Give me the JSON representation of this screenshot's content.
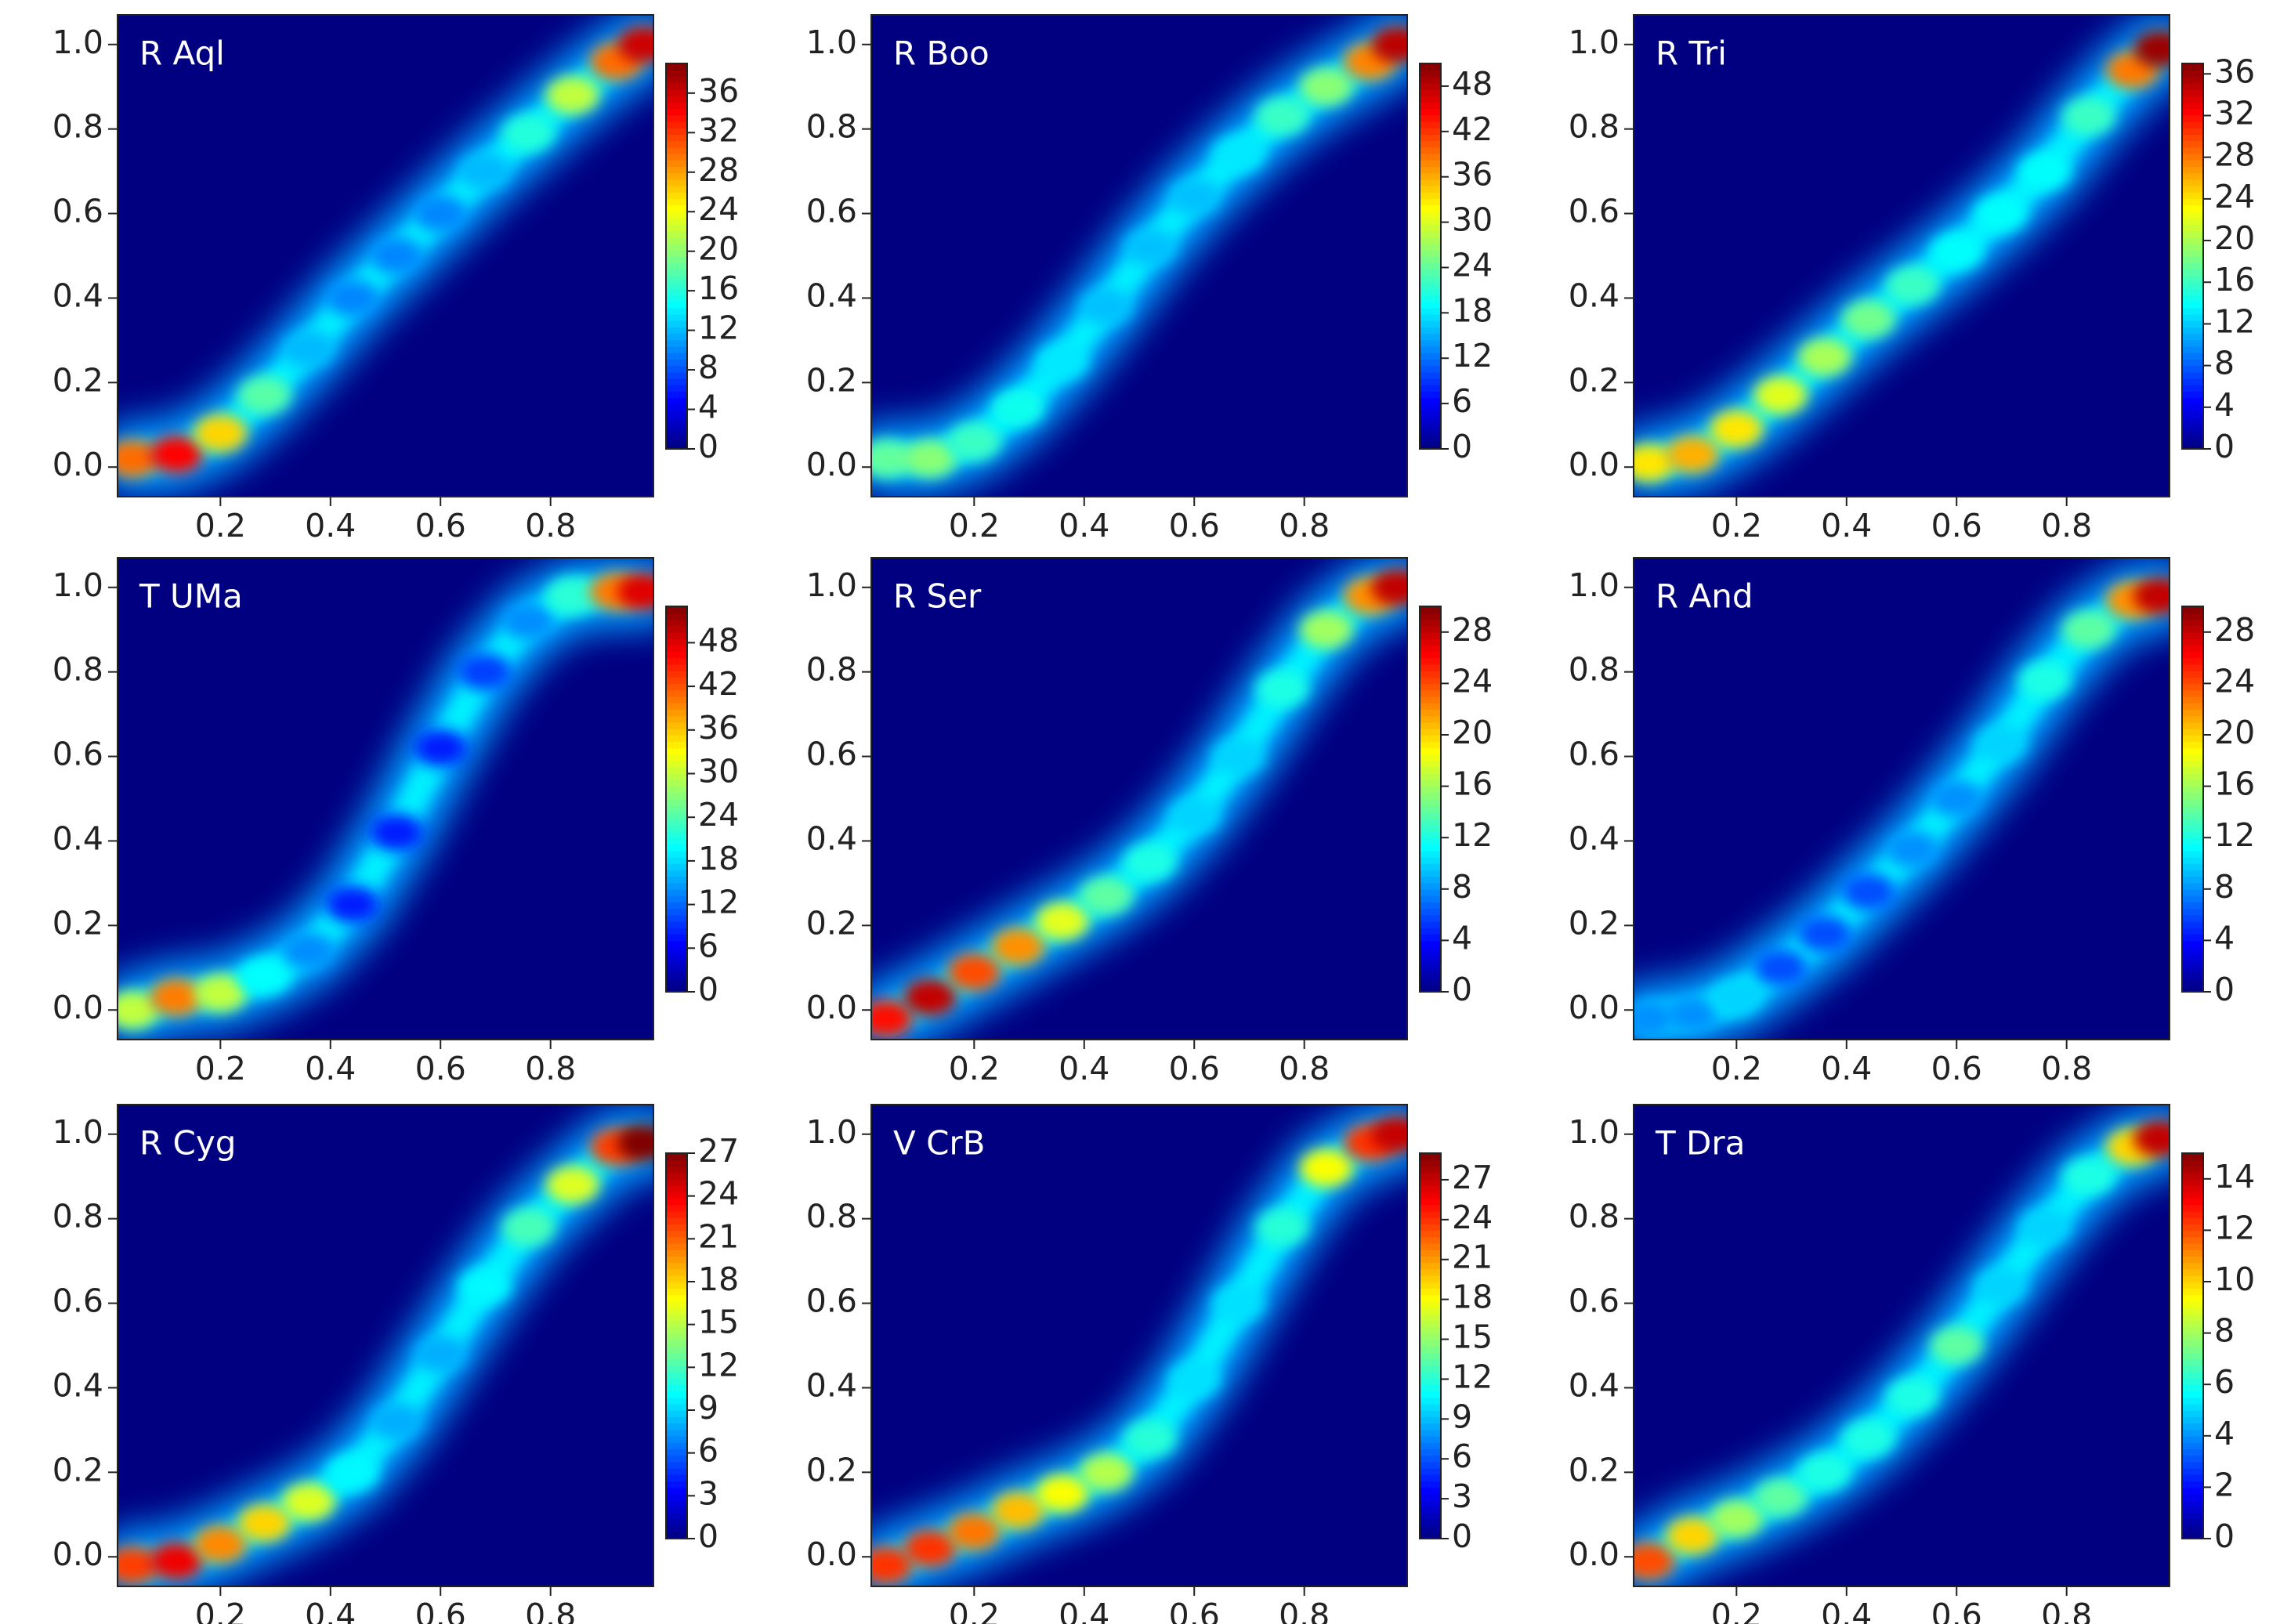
{
  "chart_data": [
    {
      "type": "contour",
      "title": "R Aql",
      "colormap": "jet",
      "xlim": [
        0.013,
        0.987
      ],
      "ylim": [
        -0.07,
        1.07
      ],
      "xticks": [
        0.2,
        0.4,
        0.6,
        0.8
      ],
      "yticks": [
        {
          "value": 0,
          "label": "0.0"
        },
        0.2,
        0.4,
        0.6,
        0.8,
        {
          "value": 1,
          "label": "1.0"
        }
      ],
      "clim": [
        0,
        39
      ],
      "cticks": [
        0,
        4,
        8,
        12,
        16,
        20,
        24,
        28,
        32,
        36
      ],
      "x": [
        0.04,
        0.12,
        0.2,
        0.28,
        0.36,
        0.44,
        0.52,
        0.6,
        0.68,
        0.76,
        0.84,
        0.92,
        0.97
      ],
      "y": [
        0.02,
        0.03,
        0.08,
        0.17,
        0.28,
        0.4,
        0.5,
        0.6,
        0.7,
        0.79,
        0.88,
        0.96,
        1.0
      ],
      "values": [
        30,
        34,
        26,
        18,
        12,
        10,
        10,
        10,
        12,
        16,
        22,
        30,
        36
      ]
    },
    {
      "type": "contour",
      "title": "R Boo",
      "colormap": "jet",
      "xlim": [
        0.013,
        0.987
      ],
      "ylim": [
        -0.07,
        1.07
      ],
      "xticks": [
        0.2,
        0.4,
        0.6,
        0.8
      ],
      "yticks": [
        {
          "value": 0,
          "label": "0.0"
        },
        0.2,
        0.4,
        0.6,
        0.8,
        {
          "value": 1,
          "label": "1.0"
        }
      ],
      "clim": [
        0,
        51
      ],
      "cticks": [
        0,
        6,
        12,
        18,
        24,
        30,
        36,
        42,
        48
      ],
      "x": [
        0.04,
        0.12,
        0.2,
        0.28,
        0.36,
        0.44,
        0.52,
        0.6,
        0.68,
        0.76,
        0.84,
        0.92,
        0.97
      ],
      "y": [
        0.02,
        0.02,
        0.06,
        0.14,
        0.25,
        0.38,
        0.52,
        0.64,
        0.74,
        0.83,
        0.9,
        0.96,
        1.0
      ],
      "values": [
        24,
        26,
        22,
        20,
        18,
        16,
        16,
        16,
        18,
        22,
        26,
        38,
        48
      ]
    },
    {
      "type": "contour",
      "title": "R Tri",
      "colormap": "jet",
      "xlim": [
        0.013,
        0.987
      ],
      "ylim": [
        -0.07,
        1.07
      ],
      "xticks": [
        0.2,
        0.4,
        0.6,
        0.8
      ],
      "yticks": [
        {
          "value": 0,
          "label": "0.0"
        },
        0.2,
        0.4,
        0.6,
        0.8,
        {
          "value": 1,
          "label": "1.0"
        }
      ],
      "clim": [
        0,
        37
      ],
      "cticks": [
        0,
        4,
        8,
        12,
        16,
        20,
        24,
        28,
        32,
        36
      ],
      "x": [
        0.04,
        0.12,
        0.2,
        0.28,
        0.36,
        0.44,
        0.52,
        0.6,
        0.68,
        0.76,
        0.84,
        0.92,
        0.97
      ],
      "y": [
        0.01,
        0.03,
        0.09,
        0.17,
        0.26,
        0.35,
        0.43,
        0.51,
        0.6,
        0.7,
        0.83,
        0.94,
        0.99
      ],
      "values": [
        24,
        26,
        24,
        22,
        20,
        18,
        16,
        14,
        14,
        14,
        16,
        28,
        36
      ]
    },
    {
      "type": "contour",
      "title": "T UMa",
      "colormap": "jet",
      "xlim": [
        0.013,
        0.987
      ],
      "ylim": [
        -0.07,
        1.07
      ],
      "xticks": [
        0.2,
        0.4,
        0.6,
        0.8
      ],
      "yticks": [
        {
          "value": 0,
          "label": "0.0"
        },
        0.2,
        0.4,
        0.6,
        0.8,
        {
          "value": 1,
          "label": "1.0"
        }
      ],
      "clim": [
        0,
        53
      ],
      "cticks": [
        0,
        6,
        12,
        18,
        24,
        30,
        36,
        42,
        48
      ],
      "x": [
        0.04,
        0.12,
        0.2,
        0.28,
        0.36,
        0.44,
        0.52,
        0.6,
        0.68,
        0.76,
        0.84,
        0.92,
        0.97
      ],
      "y": [
        0.0,
        0.03,
        0.04,
        0.08,
        0.14,
        0.25,
        0.42,
        0.62,
        0.8,
        0.92,
        0.98,
        0.99,
        0.99
      ],
      "values": [
        30,
        40,
        30,
        20,
        14,
        8,
        8,
        8,
        10,
        14,
        22,
        40,
        48
      ]
    },
    {
      "type": "contour",
      "title": "R Ser",
      "colormap": "jet",
      "xlim": [
        0.013,
        0.987
      ],
      "ylim": [
        -0.07,
        1.07
      ],
      "xticks": [
        0.2,
        0.4,
        0.6,
        0.8
      ],
      "yticks": [
        {
          "value": 0,
          "label": "0.0"
        },
        0.2,
        0.4,
        0.6,
        0.8,
        {
          "value": 1,
          "label": "1.0"
        }
      ],
      "clim": [
        0,
        30
      ],
      "cticks": [
        0,
        4,
        8,
        12,
        16,
        20,
        24,
        28
      ],
      "x": [
        0.04,
        0.12,
        0.2,
        0.28,
        0.36,
        0.44,
        0.52,
        0.6,
        0.68,
        0.76,
        0.84,
        0.92,
        0.97
      ],
      "y": [
        -0.02,
        0.03,
        0.09,
        0.15,
        0.21,
        0.27,
        0.35,
        0.46,
        0.6,
        0.76,
        0.9,
        0.98,
        1.0
      ],
      "values": [
        26,
        28,
        24,
        22,
        18,
        14,
        12,
        10,
        10,
        12,
        16,
        22,
        28
      ]
    },
    {
      "type": "contour",
      "title": "R And",
      "colormap": "jet",
      "xlim": [
        0.013,
        0.987
      ],
      "ylim": [
        -0.07,
        1.07
      ],
      "xticks": [
        0.2,
        0.4,
        0.6,
        0.8
      ],
      "yticks": [
        {
          "value": 0,
          "label": "0.0"
        },
        0.2,
        0.4,
        0.6,
        0.8,
        {
          "value": 1,
          "label": "1.0"
        }
      ],
      "clim": [
        0,
        30
      ],
      "cticks": [
        0,
        4,
        8,
        12,
        16,
        20,
        24,
        28
      ],
      "x": [
        0.04,
        0.12,
        0.2,
        0.28,
        0.36,
        0.44,
        0.52,
        0.6,
        0.68,
        0.76,
        0.84,
        0.92,
        0.97
      ],
      "y": [
        -0.02,
        -0.01,
        0.03,
        0.1,
        0.18,
        0.28,
        0.38,
        0.5,
        0.63,
        0.78,
        0.9,
        0.97,
        0.98
      ],
      "values": [
        8,
        8,
        10,
        6,
        6,
        6,
        8,
        8,
        10,
        12,
        14,
        22,
        28
      ]
    },
    {
      "type": "contour",
      "title": "R Cyg",
      "colormap": "jet",
      "xlim": [
        0.013,
        0.987
      ],
      "ylim": [
        -0.07,
        1.07
      ],
      "xticks": [
        0.2,
        0.4,
        0.6,
        0.8
      ],
      "yticks": [
        {
          "value": 0,
          "label": "0.0"
        },
        0.2,
        0.4,
        0.6,
        0.8,
        {
          "value": 1,
          "label": "1.0"
        }
      ],
      "clim": [
        0,
        27
      ],
      "cticks": [
        0,
        3,
        6,
        9,
        12,
        15,
        18,
        21,
        24,
        27
      ],
      "x": [
        0.04,
        0.12,
        0.2,
        0.28,
        0.36,
        0.44,
        0.52,
        0.6,
        0.68,
        0.76,
        0.84,
        0.92,
        0.97
      ],
      "y": [
        -0.02,
        -0.01,
        0.03,
        0.08,
        0.13,
        0.2,
        0.32,
        0.48,
        0.64,
        0.78,
        0.88,
        0.97,
        0.98
      ],
      "values": [
        22,
        24,
        20,
        18,
        16,
        10,
        8,
        8,
        10,
        12,
        16,
        22,
        27
      ]
    },
    {
      "type": "contour",
      "title": "V CrB",
      "colormap": "jet",
      "xlim": [
        0.013,
        0.987
      ],
      "ylim": [
        -0.07,
        1.07
      ],
      "xticks": [
        0.2,
        0.4,
        0.6,
        0.8
      ],
      "yticks": [
        {
          "value": 0,
          "label": "0.0"
        },
        0.2,
        0.4,
        0.6,
        0.8,
        {
          "value": 1,
          "label": "1.0"
        }
      ],
      "clim": [
        0,
        29
      ],
      "cticks": [
        0,
        3,
        6,
        9,
        12,
        15,
        18,
        21,
        24,
        27
      ],
      "x": [
        0.04,
        0.12,
        0.2,
        0.28,
        0.36,
        0.44,
        0.52,
        0.6,
        0.68,
        0.76,
        0.84,
        0.92,
        0.97
      ],
      "y": [
        -0.02,
        0.02,
        0.06,
        0.11,
        0.15,
        0.2,
        0.28,
        0.42,
        0.6,
        0.78,
        0.92,
        0.98,
        1.0
      ],
      "values": [
        24,
        24,
        22,
        20,
        18,
        16,
        12,
        10,
        10,
        12,
        18,
        24,
        27
      ]
    },
    {
      "type": "contour",
      "title": "T Dra",
      "colormap": "jet",
      "xlim": [
        0.013,
        0.987
      ],
      "ylim": [
        -0.07,
        1.07
      ],
      "xticks": [
        0.2,
        0.4,
        0.6,
        0.8
      ],
      "yticks": [
        {
          "value": 0,
          "label": "0.0"
        },
        0.2,
        0.4,
        0.6,
        0.8,
        {
          "value": 1,
          "label": "1.0"
        }
      ],
      "clim": [
        0,
        15
      ],
      "cticks": [
        0,
        2,
        4,
        6,
        8,
        10,
        12,
        14
      ],
      "x": [
        0.04,
        0.12,
        0.2,
        0.28,
        0.36,
        0.44,
        0.52,
        0.6,
        0.68,
        0.76,
        0.84,
        0.92,
        0.97
      ],
      "y": [
        -0.01,
        0.05,
        0.09,
        0.14,
        0.2,
        0.28,
        0.38,
        0.5,
        0.64,
        0.78,
        0.9,
        0.97,
        0.99
      ],
      "values": [
        12,
        10,
        8,
        7,
        6,
        6,
        6,
        7,
        5,
        5,
        6,
        10,
        14
      ]
    }
  ]
}
